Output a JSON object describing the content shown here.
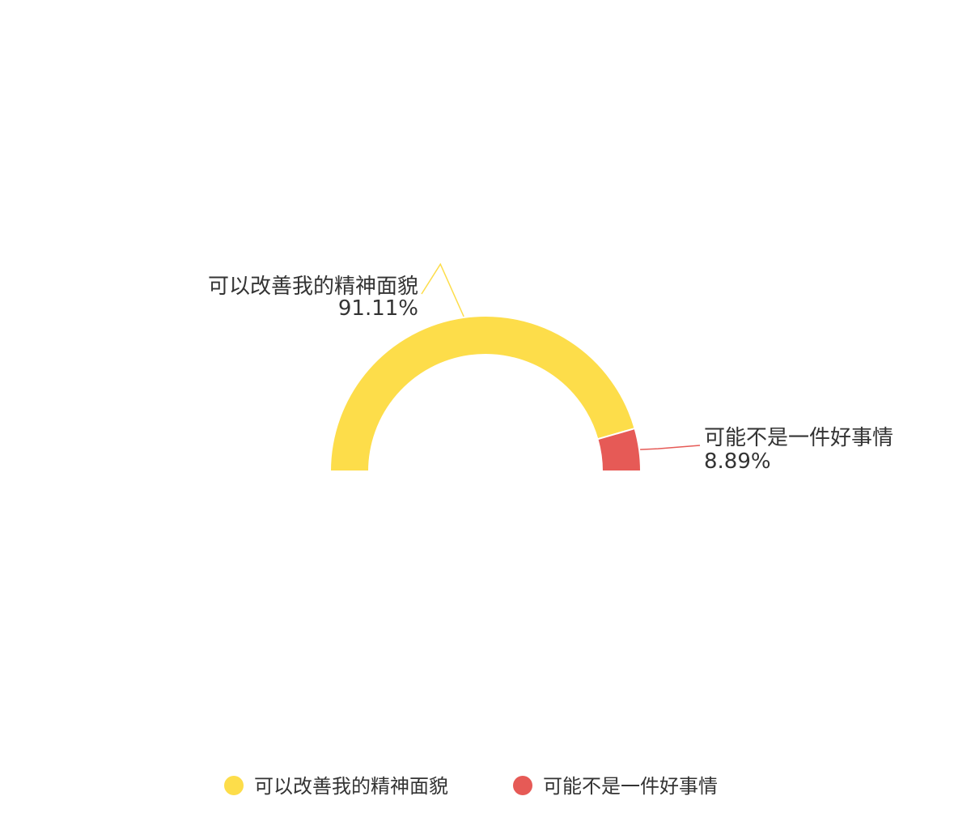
{
  "chart_data": {
    "type": "pie",
    "style": "half-donut",
    "title": "",
    "legend_position": "bottom",
    "series": [
      {
        "name": "可以改善我的精神面貌",
        "value": 91.11,
        "label": "91.11%",
        "color": "#FDDD4A"
      },
      {
        "name": "可能不是一件好事情",
        "value": 8.89,
        "label": "8.89%",
        "color": "#E65A56"
      }
    ]
  }
}
